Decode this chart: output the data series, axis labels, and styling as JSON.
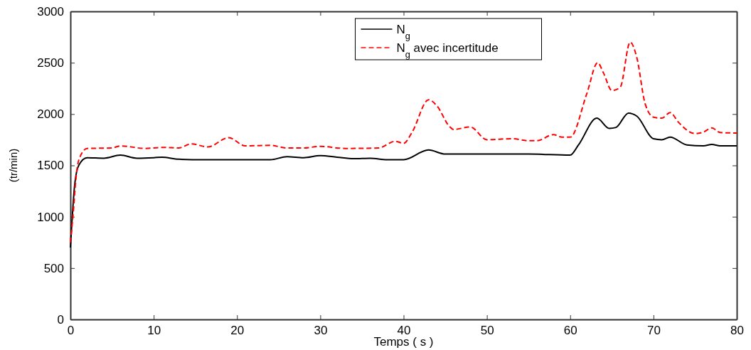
{
  "chart_data": {
    "type": "line",
    "xlabel": "Temps ( s )",
    "ylabel": "(tr/min)",
    "xlim": [
      0,
      80
    ],
    "ylim": [
      0,
      3000
    ],
    "xticks": [
      0,
      10,
      20,
      30,
      40,
      50,
      60,
      70,
      80
    ],
    "yticks": [
      0,
      500,
      1000,
      1500,
      2000,
      2500,
      3000
    ],
    "grid": false,
    "legend": "top",
    "marker": "none",
    "series": [
      {
        "name": "N$_{g}$",
        "color": "#000000",
        "line_style": "solid",
        "x": [
          0,
          0.5,
          1,
          2,
          4,
          6,
          8,
          10,
          11,
          13,
          16,
          20,
          24,
          26,
          28,
          30,
          32,
          34,
          36,
          38,
          40,
          43,
          45,
          50,
          55,
          60,
          61,
          63.2,
          64.7,
          65.5,
          67,
          68,
          70,
          71,
          72,
          74,
          76,
          77,
          78,
          80
        ],
        "values": [
          700,
          1300,
          1500,
          1575,
          1570,
          1600,
          1570,
          1575,
          1580,
          1560,
          1555,
          1555,
          1555,
          1585,
          1575,
          1595,
          1580,
          1565,
          1570,
          1555,
          1555,
          1650,
          1610,
          1610,
          1610,
          1600,
          1700,
          1960,
          1860,
          1870,
          2010,
          1980,
          1760,
          1750,
          1775,
          1700,
          1690,
          1705,
          1690,
          1690
        ]
      },
      {
        "name": "N$_{g}$ avec incertitude",
        "color": "#ff0000",
        "line_style": "dashed",
        "x": [
          0,
          0.3,
          0.7,
          1,
          2,
          5,
          6,
          9,
          11,
          13,
          14.5,
          16.5,
          19,
          21,
          24,
          26,
          28,
          30,
          33,
          37,
          39,
          40,
          41,
          43,
          44,
          45.5,
          46,
          48,
          50,
          53,
          55,
          56,
          58,
          59,
          60,
          62,
          63.3,
          64,
          65,
          66,
          67.2,
          68,
          69,
          70,
          71,
          72,
          73,
          75,
          76,
          77,
          78,
          80
        ],
        "values": [
          750,
          1000,
          1400,
          1550,
          1665,
          1670,
          1690,
          1665,
          1675,
          1670,
          1710,
          1680,
          1770,
          1690,
          1695,
          1670,
          1670,
          1685,
          1665,
          1670,
          1735,
          1715,
          1820,
          2140,
          2080,
          1880,
          1850,
          1875,
          1750,
          1760,
          1740,
          1740,
          1800,
          1775,
          1775,
          2200,
          2500,
          2400,
          2230,
          2260,
          2700,
          2550,
          2100,
          1970,
          1960,
          2015,
          1920,
          1810,
          1825,
          1865,
          1820,
          1815
        ]
      }
    ]
  }
}
